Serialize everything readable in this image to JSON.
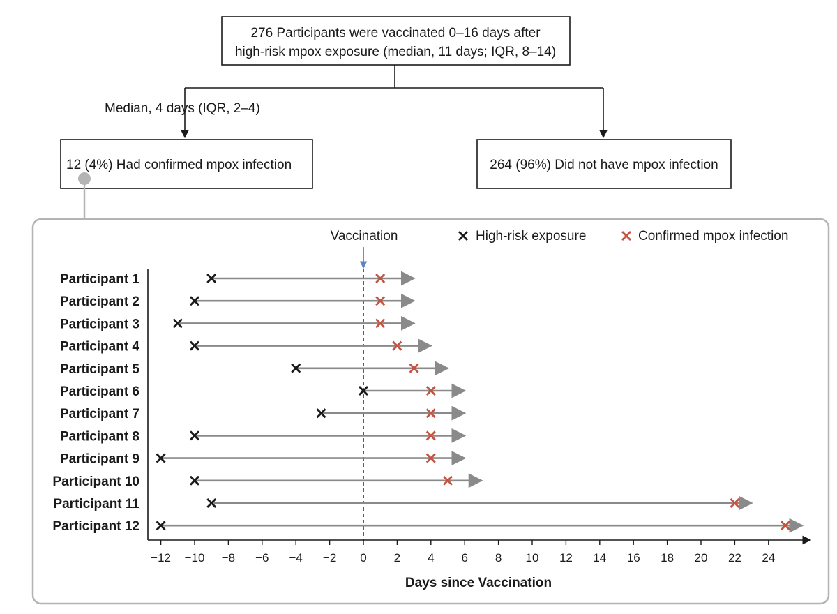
{
  "flow": {
    "top_box_line1": "276 Participants were vaccinated 0–16 days after",
    "top_box_line2": "high-risk mpox exposure (median, 11 days; IQR, 8–14)",
    "median_label": "Median, 4 days (IQR, 2–4)",
    "left_box": "12 (4%) Had confirmed mpox infection",
    "right_box": "264 (96%) Did not have mpox infection"
  },
  "colors": {
    "box_border": "#1a1a1a",
    "panel_border": "#b4b4b4",
    "connector_dot": "#b4b4b4",
    "timeline": "#8a8a8a",
    "exposure_marker": "#1a1a1a",
    "infection_marker": "#c5533f",
    "vaccination_arrow": "#5b86c4"
  },
  "chart_data": {
    "type": "timeline",
    "xlabel": "Days since Vaccination",
    "xlim": [
      -13,
      26
    ],
    "xticks": [
      -12,
      -10,
      -8,
      -6,
      -4,
      -2,
      0,
      2,
      4,
      6,
      8,
      10,
      12,
      14,
      16,
      18,
      20,
      22,
      24
    ],
    "xtick_labels": [
      "−12",
      "−10",
      "−8",
      "−6",
      "−4",
      "−2",
      "0",
      "2",
      "4",
      "6",
      "8",
      "10",
      "12",
      "14",
      "16",
      "18",
      "20",
      "22",
      "24"
    ],
    "vaccination_label": "Vaccination",
    "vaccination_day": 0,
    "legend": {
      "exposure": "High-risk exposure",
      "infection": "Confirmed mpox infection",
      "placement": "top-right"
    },
    "participants": [
      {
        "label": "Participant 1",
        "exposure": -9,
        "infection": 1,
        "arrow_end": 3
      },
      {
        "label": "Participant 2",
        "exposure": -10,
        "infection": 1,
        "arrow_end": 3
      },
      {
        "label": "Participant 3",
        "exposure": -11,
        "infection": 1,
        "arrow_end": 3
      },
      {
        "label": "Participant 4",
        "exposure": -10,
        "infection": 2,
        "arrow_end": 4
      },
      {
        "label": "Participant 5",
        "exposure": -4,
        "infection": 3,
        "arrow_end": 5
      },
      {
        "label": "Participant 6",
        "exposure": 0,
        "infection": 4,
        "arrow_end": 6
      },
      {
        "label": "Participant 7",
        "exposure": -2.5,
        "infection": 4,
        "arrow_end": 6
      },
      {
        "label": "Participant 8",
        "exposure": -10,
        "infection": 4,
        "arrow_end": 6
      },
      {
        "label": "Participant 9",
        "exposure": -12,
        "infection": 4,
        "arrow_end": 6
      },
      {
        "label": "Participant 10",
        "exposure": -10,
        "infection": 5,
        "arrow_end": 7
      },
      {
        "label": "Participant 11",
        "exposure": -9,
        "infection": 22,
        "arrow_end": 23
      },
      {
        "label": "Participant 12",
        "exposure": -12,
        "infection": 25,
        "arrow_end": 26
      }
    ]
  }
}
